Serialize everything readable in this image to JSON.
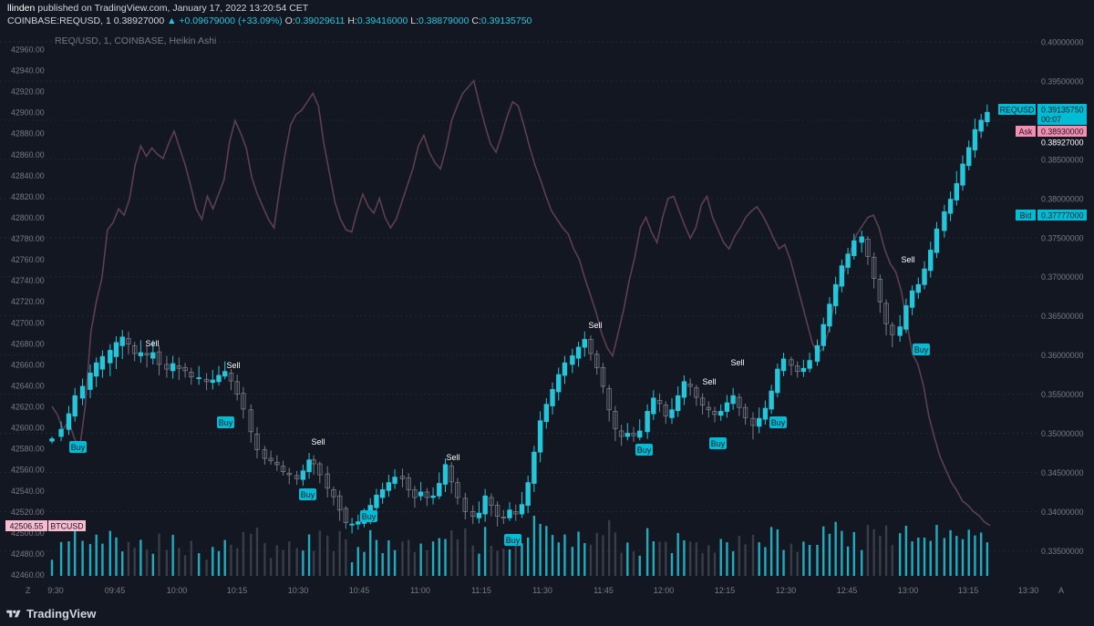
{
  "header": {
    "publisher_user": "llinden",
    "publisher_rest": "published on TradingView.com, January 17, 2022 13:20:54 CET",
    "symbol": "COINBASE:REQUSD, 1",
    "last": "0.38927000",
    "change": "▲ +0.09679000 (+33.09%)",
    "o_label": "O:",
    "o": "0.39029611",
    "h_label": "H:",
    "h": "0.39416000",
    "l_label": "L:",
    "l": "0.38879000",
    "c_label": "C:",
    "c": "0.39135750",
    "series_title": "REQ/USD, 1, COINBASE, Heikin Ashi"
  },
  "footer": {
    "brand": "TradingView",
    "z_button": "Z",
    "a_button": "A"
  },
  "colors": {
    "background": "#131722",
    "up": "#26c6da",
    "down": "#787b86",
    "overlay_line": "#5d3f4f",
    "grid": "#2a2e39",
    "ask": "#f48fb1",
    "bid": "#00bcd4",
    "btc_tag": "#f8bbd0"
  },
  "chart_data": {
    "type": "candlestick",
    "style": "Heikin Ashi",
    "symbol": "REQ/USD",
    "exchange": "COINBASE",
    "interval": "1",
    "x_ticks": [
      "9:30",
      "09:45",
      "10:00",
      "10:15",
      "10:30",
      "10:45",
      "11:00",
      "11:15",
      "11:30",
      "11:45",
      "12:00",
      "12:15",
      "12:30",
      "12:45",
      "13:00",
      "13:15",
      "13:30"
    ],
    "right_axis": {
      "ticks": [
        "0.40000000",
        "0.39500000",
        "0.39000000",
        "0.38500000",
        "0.38000000",
        "0.37500000",
        "0.37000000",
        "0.36500000",
        "0.36000000",
        "0.35500000",
        "0.35000000",
        "0.34500000",
        "0.34000000",
        "0.33500000"
      ],
      "range": [
        0.331,
        0.4015
      ]
    },
    "left_axis": {
      "ticks": [
        "42960.00",
        "42940.00",
        "42920.00",
        "42900.00",
        "42880.00",
        "42860.00",
        "42840.00",
        "42820.00",
        "42800.00",
        "42780.00",
        "42760.00",
        "42740.00",
        "42720.00",
        "42700.00",
        "42680.00",
        "42660.00",
        "42640.00",
        "42620.00",
        "42600.00",
        "42580.00",
        "42560.00",
        "42540.00",
        "42520.00",
        "42500.00",
        "42480.00",
        "42460.00"
      ],
      "range": [
        42452,
        42966
      ]
    },
    "price_labels": {
      "last_symbol": "REQUSD",
      "last_price": "0.39135750",
      "countdown": "00:07",
      "ask_label": "Ask",
      "ask": "0.38930000",
      "last_trade": "0.38927000",
      "bid_label": "Bid",
      "bid": "0.37777000",
      "btc_value": "42506.55",
      "btc_symbol": "BTCUSD"
    },
    "ha_candles": [
      [
        0,
        0.349,
        0.3493,
        0.3496,
        0.3487
      ],
      [
        6,
        0.3496,
        0.3505,
        0.3515,
        0.349
      ],
      [
        11,
        0.3505,
        0.3525,
        0.3535,
        0.3498
      ],
      [
        15,
        0.3522,
        0.3548,
        0.3558,
        0.3515
      ],
      [
        20,
        0.3545,
        0.356,
        0.357,
        0.3536
      ],
      [
        25,
        0.3556,
        0.3577,
        0.3588,
        0.3545
      ],
      [
        29,
        0.3573,
        0.359,
        0.3597,
        0.3559
      ],
      [
        33,
        0.3582,
        0.3598,
        0.3606,
        0.3571
      ],
      [
        38,
        0.359,
        0.3606,
        0.3614,
        0.3573
      ],
      [
        42,
        0.3598,
        0.3616,
        0.3624,
        0.3582
      ],
      [
        46,
        0.3612,
        0.3623,
        0.3632,
        0.3595
      ],
      [
        50,
        0.3621,
        0.3614,
        0.363,
        0.3601
      ],
      [
        54,
        0.3612,
        0.3602,
        0.3617,
        0.3592
      ],
      [
        58,
        0.3599,
        0.3603,
        0.3619,
        0.359
      ],
      [
        62,
        0.3602,
        0.36,
        0.3612,
        0.3584
      ],
      [
        66,
        0.3596,
        0.3603,
        0.3619,
        0.3588
      ],
      [
        70,
        0.3604,
        0.3588,
        0.3612,
        0.3574
      ],
      [
        75,
        0.3588,
        0.3582,
        0.3599,
        0.3571
      ],
      [
        79,
        0.358,
        0.3589,
        0.3599,
        0.357
      ],
      [
        83,
        0.3586,
        0.3583,
        0.3597,
        0.3568
      ],
      [
        87,
        0.3584,
        0.358,
        0.359,
        0.3571
      ],
      [
        91,
        0.3578,
        0.3572,
        0.3584,
        0.3562
      ],
      [
        96,
        0.357,
        0.3571,
        0.3586,
        0.3562
      ],
      [
        101,
        0.3569,
        0.3566,
        0.3577,
        0.3555
      ],
      [
        105,
        0.3565,
        0.3568,
        0.3581,
        0.3556
      ],
      [
        109,
        0.3566,
        0.3574,
        0.3586,
        0.3561
      ],
      [
        113,
        0.3573,
        0.3579,
        0.3592,
        0.3569
      ],
      [
        117,
        0.3577,
        0.3567,
        0.3582,
        0.3555
      ],
      [
        121,
        0.3566,
        0.355,
        0.3575,
        0.3542
      ],
      [
        125,
        0.3551,
        0.3531,
        0.3559,
        0.3519
      ],
      [
        130,
        0.353,
        0.3502,
        0.3537,
        0.3488
      ],
      [
        134,
        0.3499,
        0.3479,
        0.3508,
        0.3468
      ],
      [
        139,
        0.3479,
        0.3468,
        0.3484,
        0.346
      ],
      [
        143,
        0.3468,
        0.3465,
        0.3478,
        0.346
      ],
      [
        147,
        0.3463,
        0.346,
        0.3472,
        0.3452
      ],
      [
        151,
        0.3458,
        0.3451,
        0.3465,
        0.3446
      ],
      [
        155,
        0.3449,
        0.3447,
        0.3456,
        0.3435
      ],
      [
        160,
        0.3446,
        0.3442,
        0.3452,
        0.3434
      ],
      [
        164,
        0.3441,
        0.3452,
        0.346,
        0.3433
      ],
      [
        168,
        0.3451,
        0.3466,
        0.3475,
        0.3442
      ],
      [
        171,
        0.3466,
        0.3461,
        0.3472,
        0.3447
      ],
      [
        175,
        0.3461,
        0.3447,
        0.3464,
        0.3436
      ],
      [
        180,
        0.3448,
        0.343,
        0.3458,
        0.3418
      ],
      [
        184,
        0.3428,
        0.3419,
        0.3432,
        0.3408
      ],
      [
        188,
        0.342,
        0.3402,
        0.3427,
        0.3388
      ],
      [
        192,
        0.3404,
        0.3386,
        0.3407,
        0.3378
      ],
      [
        196,
        0.3384,
        0.3384,
        0.3392,
        0.3372
      ],
      [
        200,
        0.3384,
        0.3387,
        0.3396,
        0.3377
      ],
      [
        204,
        0.3385,
        0.3392,
        0.3404,
        0.338
      ],
      [
        208,
        0.339,
        0.3408,
        0.3417,
        0.3384
      ],
      [
        212,
        0.3405,
        0.3421,
        0.3429,
        0.3397
      ],
      [
        216,
        0.3418,
        0.3428,
        0.3437,
        0.341
      ],
      [
        220,
        0.3427,
        0.3437,
        0.3447,
        0.3419
      ],
      [
        224,
        0.3436,
        0.3444,
        0.3454,
        0.3429
      ],
      [
        229,
        0.3445,
        0.3442,
        0.3455,
        0.3431
      ],
      [
        233,
        0.3443,
        0.3428,
        0.3449,
        0.3418
      ],
      [
        237,
        0.3428,
        0.3418,
        0.3433,
        0.3405
      ],
      [
        241,
        0.342,
        0.3425,
        0.3438,
        0.3414
      ],
      [
        245,
        0.3425,
        0.3418,
        0.343,
        0.3407
      ],
      [
        249,
        0.3418,
        0.342,
        0.3431,
        0.3409
      ],
      [
        253,
        0.342,
        0.3436,
        0.345,
        0.3416
      ],
      [
        257,
        0.3435,
        0.346,
        0.3468,
        0.3425
      ],
      [
        261,
        0.3458,
        0.3438,
        0.3463,
        0.3423
      ],
      [
        265,
        0.3437,
        0.3418,
        0.3443,
        0.3409
      ],
      [
        270,
        0.3417,
        0.34,
        0.3424,
        0.339
      ],
      [
        275,
        0.34,
        0.3394,
        0.3408,
        0.3384
      ],
      [
        279,
        0.3392,
        0.3398,
        0.3413,
        0.3385
      ],
      [
        283,
        0.3397,
        0.342,
        0.3429,
        0.3387
      ],
      [
        287,
        0.3418,
        0.3408,
        0.3423,
        0.3394
      ],
      [
        291,
        0.3408,
        0.3394,
        0.3413,
        0.3381
      ],
      [
        295,
        0.3393,
        0.3392,
        0.3402,
        0.3384
      ],
      [
        299,
        0.3392,
        0.3402,
        0.3412,
        0.3388
      ],
      [
        303,
        0.34,
        0.3397,
        0.3409,
        0.3388
      ],
      [
        307,
        0.3397,
        0.3409,
        0.3425,
        0.3392
      ],
      [
        311,
        0.3408,
        0.3437,
        0.3446,
        0.3398
      ],
      [
        315,
        0.3436,
        0.3476,
        0.3484,
        0.3425
      ],
      [
        319,
        0.3476,
        0.3516,
        0.3528,
        0.3463
      ],
      [
        323,
        0.3515,
        0.3537,
        0.3545,
        0.3506
      ],
      [
        327,
        0.3535,
        0.3556,
        0.3565,
        0.3524
      ],
      [
        331,
        0.3553,
        0.3575,
        0.3584,
        0.3542
      ],
      [
        335,
        0.3574,
        0.359,
        0.3599,
        0.3563
      ],
      [
        340,
        0.3588,
        0.3599,
        0.3608,
        0.3577
      ],
      [
        344,
        0.3596,
        0.361,
        0.3617,
        0.3585
      ],
      [
        348,
        0.361,
        0.362,
        0.363,
        0.3598
      ],
      [
        352,
        0.362,
        0.3602,
        0.3625,
        0.3593
      ],
      [
        356,
        0.3601,
        0.3584,
        0.3606,
        0.3575
      ],
      [
        360,
        0.3584,
        0.356,
        0.359,
        0.3551
      ],
      [
        364,
        0.3557,
        0.353,
        0.3562,
        0.3515
      ],
      [
        368,
        0.3528,
        0.3506,
        0.3535,
        0.349
      ],
      [
        372,
        0.3503,
        0.3496,
        0.3511,
        0.3484
      ],
      [
        376,
        0.3496,
        0.35,
        0.3513,
        0.3491
      ],
      [
        380,
        0.35,
        0.3497,
        0.3508,
        0.3489
      ],
      [
        384,
        0.3495,
        0.3503,
        0.3518,
        0.3491
      ],
      [
        389,
        0.3502,
        0.3528,
        0.3537,
        0.3493
      ],
      [
        393,
        0.3525,
        0.3545,
        0.3555,
        0.3517
      ],
      [
        397,
        0.3542,
        0.3538,
        0.3551,
        0.3527
      ],
      [
        401,
        0.3536,
        0.3522,
        0.3541,
        0.3512
      ],
      [
        405,
        0.352,
        0.353,
        0.3545,
        0.3512
      ],
      [
        409,
        0.3529,
        0.3548,
        0.356,
        0.3521
      ],
      [
        413,
        0.3546,
        0.3566,
        0.3574,
        0.3536
      ],
      [
        417,
        0.3563,
        0.356,
        0.357,
        0.3548
      ],
      [
        421,
        0.3558,
        0.3546,
        0.3562,
        0.3535
      ],
      [
        425,
        0.3545,
        0.3536,
        0.3551,
        0.3524
      ],
      [
        429,
        0.3533,
        0.353,
        0.3541,
        0.352
      ],
      [
        433,
        0.3528,
        0.3524,
        0.3534,
        0.3514
      ],
      [
        437,
        0.3523,
        0.3528,
        0.3537,
        0.3516
      ],
      [
        441,
        0.3528,
        0.3539,
        0.3549,
        0.352
      ],
      [
        445,
        0.3538,
        0.3548,
        0.3558,
        0.353
      ],
      [
        449,
        0.3546,
        0.3533,
        0.3551,
        0.3522
      ],
      [
        453,
        0.3533,
        0.352,
        0.3538,
        0.3511
      ],
      [
        458,
        0.3519,
        0.351,
        0.3527,
        0.3492
      ],
      [
        462,
        0.3509,
        0.3519,
        0.3533,
        0.35
      ],
      [
        466,
        0.3518,
        0.3532,
        0.3542,
        0.3511
      ],
      [
        470,
        0.3531,
        0.3554,
        0.3562,
        0.3525
      ],
      [
        474,
        0.3552,
        0.3582,
        0.3589,
        0.3546
      ],
      [
        478,
        0.358,
        0.3595,
        0.3603,
        0.3573
      ],
      [
        483,
        0.3594,
        0.3587,
        0.3598,
        0.3574
      ],
      [
        487,
        0.3586,
        0.3579,
        0.3592,
        0.3571
      ],
      [
        491,
        0.3579,
        0.3583,
        0.3594,
        0.3572
      ],
      [
        495,
        0.3583,
        0.3593,
        0.3603,
        0.3578
      ],
      [
        500,
        0.3592,
        0.3612,
        0.362,
        0.3586
      ],
      [
        504,
        0.3612,
        0.3639,
        0.3648,
        0.3605
      ],
      [
        508,
        0.3637,
        0.3665,
        0.3674,
        0.3629
      ],
      [
        512,
        0.3663,
        0.369,
        0.37,
        0.3652
      ],
      [
        516,
        0.3688,
        0.3714,
        0.3722,
        0.368
      ],
      [
        520,
        0.3712,
        0.3729,
        0.3737,
        0.3703
      ],
      [
        524,
        0.3727,
        0.3746,
        0.3755,
        0.3722
      ],
      [
        529,
        0.3744,
        0.3751,
        0.3759,
        0.3731
      ],
      [
        533,
        0.3748,
        0.3726,
        0.3752,
        0.3715
      ],
      [
        537,
        0.3725,
        0.3698,
        0.3731,
        0.3685
      ],
      [
        541,
        0.3697,
        0.3668,
        0.3703,
        0.3654
      ],
      [
        545,
        0.3666,
        0.364,
        0.3671,
        0.3625
      ],
      [
        549,
        0.3638,
        0.3626,
        0.3642,
        0.361
      ],
      [
        554,
        0.3625,
        0.3636,
        0.3651,
        0.3617
      ],
      [
        558,
        0.3633,
        0.3663,
        0.3672,
        0.3628
      ],
      [
        562,
        0.3661,
        0.3682,
        0.3689,
        0.3651
      ],
      [
        566,
        0.368,
        0.369,
        0.3699,
        0.3672
      ],
      [
        570,
        0.369,
        0.371,
        0.372,
        0.3684
      ],
      [
        574,
        0.3708,
        0.3734,
        0.3745,
        0.3699
      ],
      [
        578,
        0.3731,
        0.3761,
        0.377,
        0.3724
      ],
      [
        583,
        0.3759,
        0.3783,
        0.3792,
        0.375
      ],
      [
        587,
        0.3781,
        0.3799,
        0.3809,
        0.3771
      ],
      [
        591,
        0.3798,
        0.3819,
        0.3835,
        0.3791
      ],
      [
        595,
        0.3817,
        0.3844,
        0.3855,
        0.381
      ],
      [
        599,
        0.3842,
        0.3865,
        0.3874,
        0.3836
      ],
      [
        603,
        0.3862,
        0.3888,
        0.3902,
        0.3852
      ],
      [
        607,
        0.3886,
        0.39,
        0.3908,
        0.3877
      ],
      [
        611,
        0.3898,
        0.391,
        0.392,
        0.3892
      ]
    ],
    "btc_line": [
      42620,
      42612,
      42598,
      42606,
      42590,
      42580,
      42620,
      42690,
      42720,
      42742,
      42788,
      42795,
      42808,
      42802,
      42818,
      42850,
      42868,
      42858,
      42866,
      42860,
      42856,
      42870,
      42882,
      42866,
      42850,
      42830,
      42808,
      42798,
      42820,
      42808,
      42822,
      42836,
      42872,
      42892,
      42880,
      42866,
      42838,
      42822,
      42810,
      42798,
      42790,
      42826,
      42860,
      42888,
      42898,
      42902,
      42910,
      42918,
      42906,
      42870,
      42842,
      42814,
      42798,
      42788,
      42786,
      42806,
      42822,
      42810,
      42804,
      42818,
      42800,
      42790,
      42798,
      42814,
      42830,
      42846,
      42868,
      42878,
      42862,
      42852,
      42846,
      42866,
      42892,
      42906,
      42918,
      42924,
      42930,
      42908,
      42888,
      42870,
      42862,
      42878,
      42896,
      42910,
      42906,
      42888,
      42868,
      42850,
      42836,
      42820,
      42806,
      42798,
      42790,
      42784,
      42770,
      42760,
      42742,
      42726,
      42710,
      42690,
      42676,
      42668,
      42690,
      42712,
      42740,
      42762,
      42790,
      42800,
      42786,
      42776,
      42800,
      42818,
      42820,
      42806,
      42792,
      42780,
      42790,
      42812,
      42820,
      42800,
      42788,
      42776,
      42770,
      42782,
      42790,
      42800,
      42806,
      42810,
      42802,
      42792,
      42780,
      42770,
      42774,
      42760,
      42740,
      42720,
      42700,
      42680,
      42670,
      42676,
      42694,
      42720,
      42738,
      42752,
      42770,
      42784,
      42792,
      42800,
      42802,
      42790,
      42770,
      42756,
      42748,
      42730,
      42700,
      42670,
      42660,
      42640,
      42610,
      42590,
      42572,
      42560,
      42548,
      42540,
      42530,
      42526,
      42520,
      42516,
      42510,
      42506.55
    ]
  }
}
